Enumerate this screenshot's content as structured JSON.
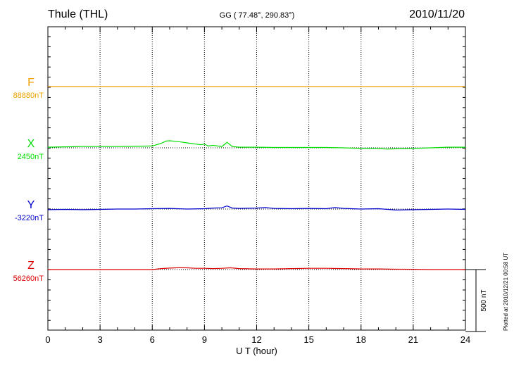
{
  "header": {
    "station": "Thule (THL)",
    "coords": "GG ( 77.48°, 290.83°)",
    "date": "2010/11/20"
  },
  "footer": {
    "plotted": "Plotted at 2010/12/21 00:58 UT"
  },
  "chart_data": {
    "type": "line",
    "xlabel": "U T (hour)",
    "xlim": [
      0,
      24
    ],
    "x_ticks": [
      0,
      3,
      6,
      9,
      12,
      15,
      18,
      21,
      24
    ],
    "x_tick_labels": [
      "0",
      "3",
      "6",
      "9",
      "12",
      "15",
      "18",
      "21",
      "24"
    ],
    "grid": "dotted vertical at every 3 hours",
    "scale_bar": {
      "label": "500 nT",
      "value_nT": 500
    },
    "series": [
      {
        "name": "F",
        "baseline_label": "88880nT",
        "baseline_nT": 88880,
        "color": "#f0a000",
        "x": [
          0,
          24
        ],
        "delta_nT": [
          0,
          0
        ]
      },
      {
        "name": "X",
        "baseline_label": "2450nT",
        "baseline_nT": 2450,
        "color": "#00dd00",
        "x": [
          0,
          1,
          2,
          3,
          4,
          5,
          6,
          6.5,
          6.8,
          7,
          7.5,
          8,
          8.5,
          8.8,
          9,
          9.2,
          9.5,
          10,
          10.3,
          10.6,
          11,
          12,
          13,
          14,
          15,
          16,
          17,
          18,
          19,
          19.5,
          20,
          21,
          22,
          23,
          24
        ],
        "delta_nT": [
          5,
          8,
          10,
          10,
          10,
          12,
          15,
          35,
          55,
          57,
          50,
          40,
          30,
          25,
          30,
          15,
          20,
          10,
          45,
          10,
          5,
          5,
          3,
          3,
          3,
          3,
          0,
          -5,
          -5,
          -10,
          -8,
          -5,
          0,
          5,
          5
        ]
      },
      {
        "name": "Y",
        "baseline_label": "-3220nT",
        "baseline_nT": -3220,
        "color": "#0000cc",
        "x": [
          0,
          1,
          2,
          3,
          4,
          5,
          6,
          7,
          8,
          9,
          9.5,
          10,
          10.3,
          10.6,
          11,
          12,
          12.5,
          13,
          14,
          15,
          16,
          16.5,
          17,
          18,
          19,
          20,
          21,
          22,
          23,
          24
        ],
        "delta_nT": [
          -5,
          -3,
          -5,
          -3,
          0,
          0,
          3,
          5,
          0,
          3,
          8,
          10,
          25,
          8,
          5,
          8,
          12,
          5,
          3,
          5,
          3,
          12,
          5,
          0,
          3,
          -8,
          -5,
          -3,
          0,
          -3
        ]
      },
      {
        "name": "Z",
        "baseline_label": "56260nT",
        "baseline_nT": 56260,
        "color": "#dd0000",
        "x": [
          0,
          2,
          4,
          6,
          6.5,
          7,
          7.5,
          8,
          8.5,
          9,
          9.5,
          10,
          10.5,
          11,
          12,
          13,
          14,
          15,
          16,
          17,
          18,
          19,
          20,
          21,
          22,
          23,
          24
        ],
        "delta_nT": [
          0,
          0,
          0,
          0,
          8,
          12,
          15,
          14,
          10,
          10,
          8,
          10,
          14,
          8,
          5,
          5,
          8,
          10,
          10,
          8,
          5,
          5,
          3,
          2,
          0,
          0,
          0
        ]
      }
    ]
  }
}
